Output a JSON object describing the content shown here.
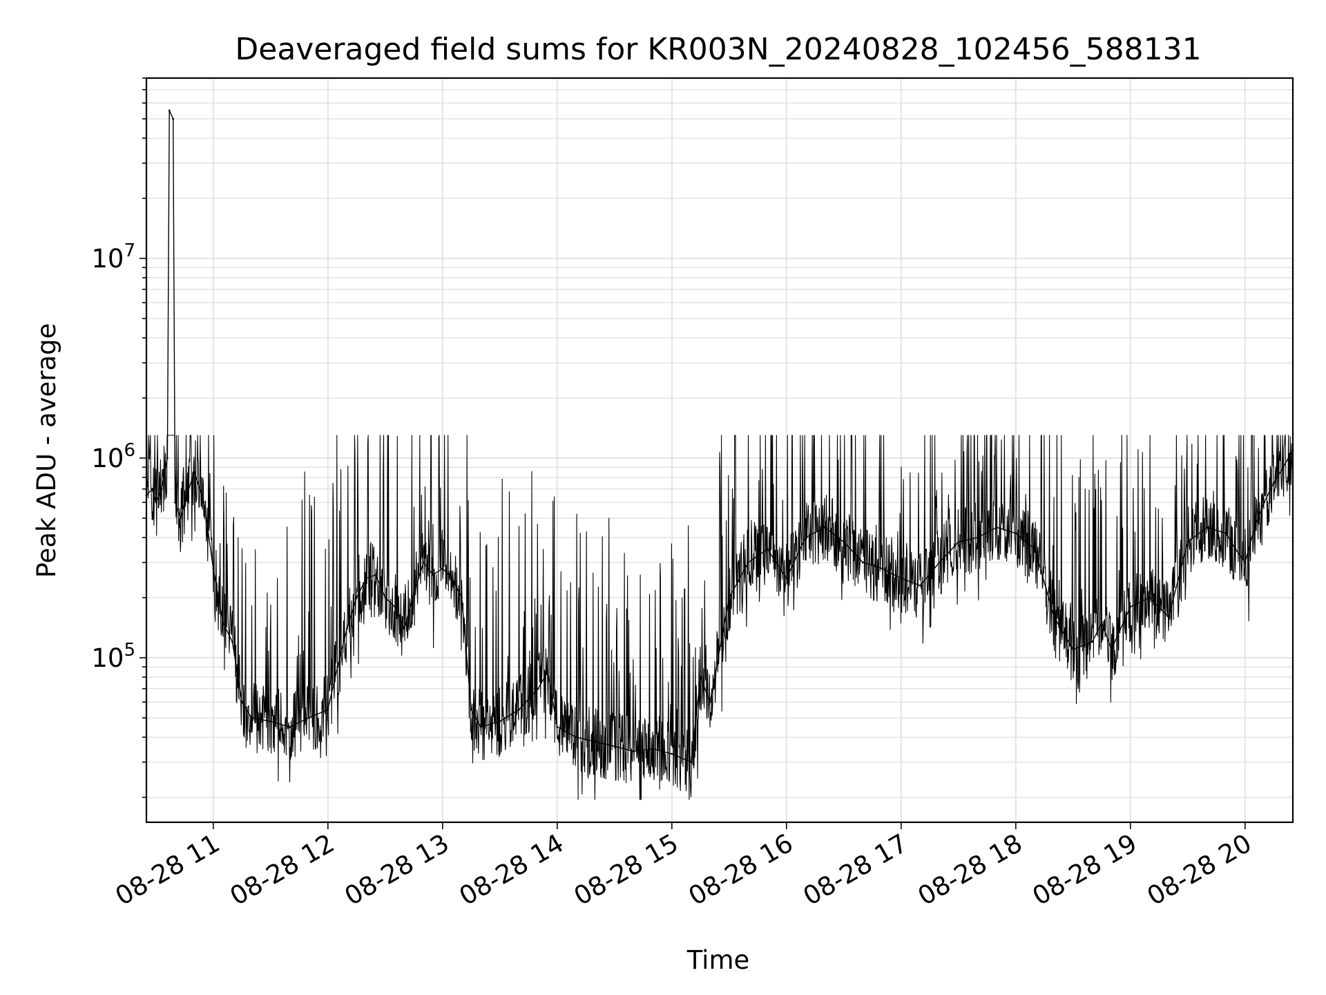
{
  "chart_data": {
    "type": "line",
    "title": "Deaveraged field sums for KR003N_20240828_102456_588131",
    "xlabel": "Time",
    "ylabel": "Peak ADU - average",
    "x_axis": {
      "kind": "datetime",
      "start": "2024-08-28T10:25",
      "end": "2024-08-28T20:25",
      "ticks": [
        {
          "value": "2024-08-28T11:00",
          "label": "08-28 11"
        },
        {
          "value": "2024-08-28T12:00",
          "label": "08-28 12"
        },
        {
          "value": "2024-08-28T13:00",
          "label": "08-28 13"
        },
        {
          "value": "2024-08-28T14:00",
          "label": "08-28 14"
        },
        {
          "value": "2024-08-28T15:00",
          "label": "08-28 15"
        },
        {
          "value": "2024-08-28T16:00",
          "label": "08-28 16"
        },
        {
          "value": "2024-08-28T17:00",
          "label": "08-28 17"
        },
        {
          "value": "2024-08-28T18:00",
          "label": "08-28 18"
        },
        {
          "value": "2024-08-28T19:00",
          "label": "08-28 19"
        },
        {
          "value": "2024-08-28T20:00",
          "label": "08-28 20"
        }
      ]
    },
    "y_axis": {
      "scale": "log",
      "range": [
        15000,
        80000000
      ],
      "ticks": [
        {
          "value": 100000,
          "base": "10",
          "exp": "5"
        },
        {
          "value": 1000000,
          "base": "10",
          "exp": "6"
        },
        {
          "value": 10000000,
          "base": "10",
          "exp": "7"
        }
      ]
    },
    "grid": true,
    "line_color": "#000000",
    "series": [
      {
        "x": [
          "10:25",
          "10:28",
          "10:30",
          "10:33",
          "10:36",
          "10:37",
          "10:39",
          "10:40",
          "10:43",
          "10:45",
          "10:50",
          "10:52",
          "10:55",
          "10:57",
          "11:00",
          "11:05",
          "11:10",
          "11:15",
          "11:20",
          "11:30",
          "11:40",
          "11:50",
          "12:00",
          "12:05",
          "12:10",
          "12:15",
          "12:20",
          "12:25",
          "12:30",
          "12:35",
          "12:40",
          "12:45",
          "12:50",
          "12:55",
          "13:00",
          "13:05",
          "13:10",
          "13:15",
          "13:20",
          "13:30",
          "13:40",
          "13:50",
          "13:55",
          "14:00",
          "14:10",
          "14:20",
          "14:30",
          "14:40",
          "14:50",
          "15:00",
          "15:10",
          "15:15",
          "15:20",
          "15:25",
          "15:30",
          "15:40",
          "15:50",
          "16:00",
          "16:10",
          "16:20",
          "16:30",
          "16:40",
          "16:50",
          "17:00",
          "17:10",
          "17:20",
          "17:30",
          "17:40",
          "17:50",
          "18:00",
          "18:10",
          "18:20",
          "18:30",
          "18:40",
          "18:45",
          "18:50",
          "19:00",
          "19:10",
          "19:20",
          "19:30",
          "19:40",
          "19:50",
          "19:55",
          "20:00",
          "20:05",
          "20:10",
          "20:15",
          "20:20",
          "20:25"
        ],
        "y": [
          650000,
          700000,
          600000,
          700000,
          1000000,
          55000000,
          50000000,
          600000,
          500000,
          600000,
          850000,
          750000,
          600000,
          450000,
          280000,
          150000,
          120000,
          60000,
          50000,
          48000,
          45000,
          50000,
          55000,
          90000,
          140000,
          200000,
          250000,
          260000,
          200000,
          180000,
          140000,
          210000,
          300000,
          260000,
          280000,
          250000,
          200000,
          55000,
          45000,
          48000,
          55000,
          70000,
          85000,
          45000,
          40000,
          38000,
          36000,
          34000,
          35000,
          33000,
          30000,
          80000,
          60000,
          110000,
          200000,
          300000,
          350000,
          250000,
          400000,
          450000,
          380000,
          300000,
          280000,
          250000,
          230000,
          300000,
          380000,
          400000,
          450000,
          420000,
          350000,
          160000,
          110000,
          120000,
          150000,
          110000,
          180000,
          200000,
          160000,
          380000,
          450000,
          420000,
          350000,
          300000,
          450000,
          600000,
          750000,
          900000,
          1100000
        ]
      }
    ]
  }
}
